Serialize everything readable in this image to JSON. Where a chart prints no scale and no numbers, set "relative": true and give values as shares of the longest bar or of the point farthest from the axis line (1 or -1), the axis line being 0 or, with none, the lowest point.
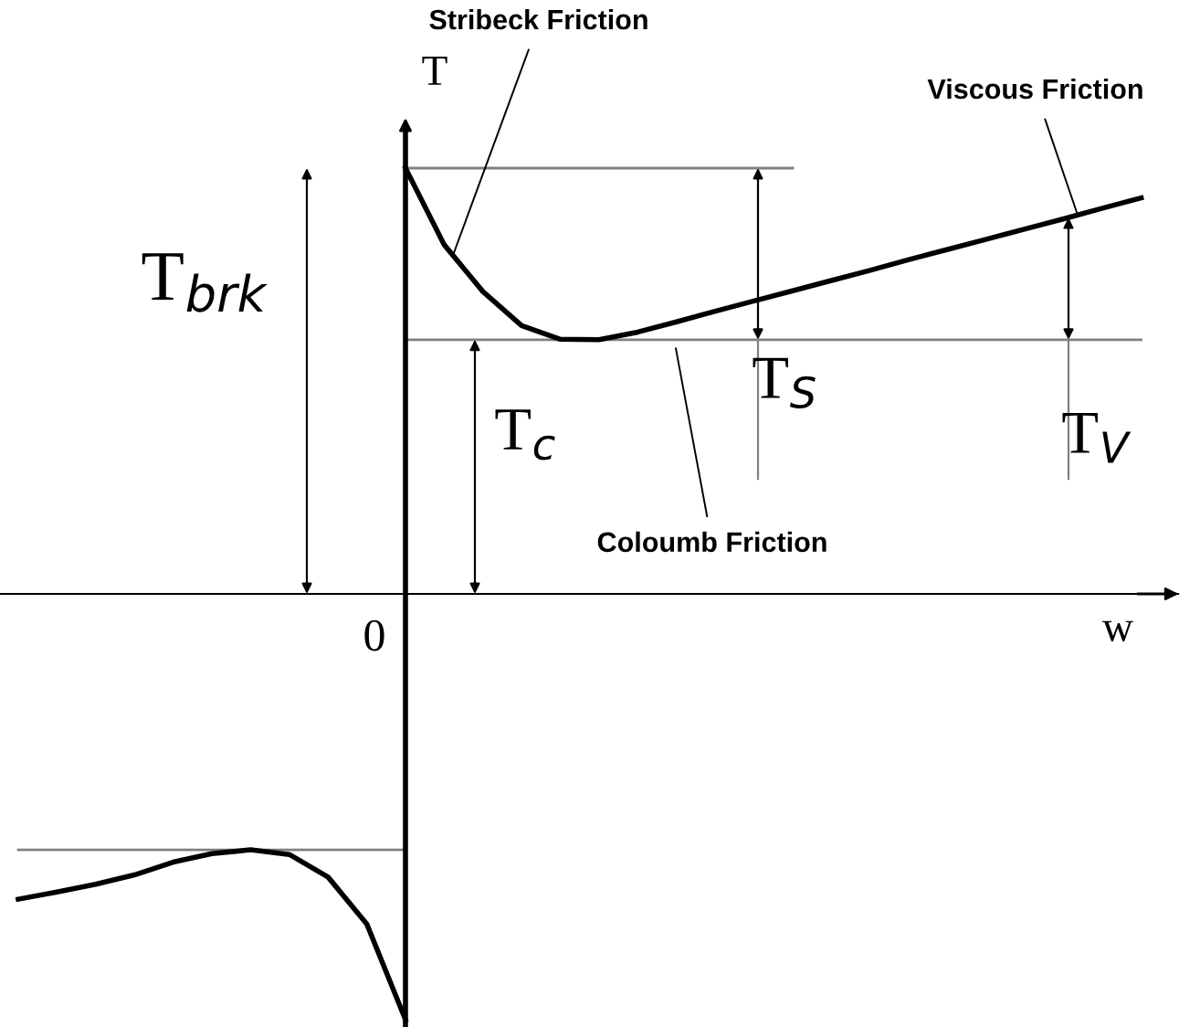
{
  "chart_data": {
    "type": "line",
    "relative": true,
    "xlabel": "w",
    "ylabel": "T",
    "marker": "none",
    "line_style": "solid",
    "categories": [
      null,
      null,
      null,
      null,
      null,
      null,
      null,
      null,
      null,
      null,
      null,
      null,
      null,
      null,
      null,
      null,
      null,
      null,
      null,
      null,
      null,
      null,
      null,
      null,
      null,
      null,
      null,
      null,
      null,
      null
    ],
    "series": [
      {
        "color": "#000000",
        "values": [
          null,
          null,
          null,
          null,
          null,
          null,
          null,
          null,
          null,
          null,
          1.0,
          0.82,
          0.71,
          0.63,
          0.598,
          0.597,
          0.615,
          0.639,
          0.664,
          0.688,
          0.712,
          0.736,
          0.76,
          0.785,
          0.809,
          0.833,
          0.857,
          0.881,
          0.906,
          0.93
        ]
      },
      {
        "color": "#000000",
        "values": [
          -0.717,
          -0.7,
          -0.682,
          -0.66,
          -0.63,
          -0.61,
          -0.601,
          -0.612,
          -0.665,
          -0.775,
          -1.0,
          null,
          null,
          null,
          null,
          null,
          null,
          null,
          null,
          null,
          null,
          null,
          null,
          null,
          null,
          null,
          null,
          null,
          null,
          null
        ]
      },
      {
        "color": "#808080",
        "values": [
          null,
          null,
          null,
          null,
          null,
          null,
          null,
          null,
          null,
          null,
          1.0,
          1.0,
          1.0,
          1.0,
          1.0,
          1.0,
          1.0,
          1.0,
          1.0,
          1.0,
          1.0,
          null,
          null,
          null,
          null,
          null,
          null,
          null,
          null,
          null
        ]
      },
      {
        "color": "#808080",
        "values": [
          null,
          null,
          null,
          null,
          null,
          null,
          null,
          null,
          null,
          null,
          0.597,
          0.597,
          0.597,
          0.597,
          0.597,
          0.597,
          0.597,
          0.597,
          0.597,
          0.597,
          0.597,
          0.597,
          0.597,
          0.597,
          0.597,
          0.597,
          0.597,
          0.597,
          0.597,
          0.597
        ]
      },
      {
        "color": "#808080",
        "values": [
          -0.601,
          -0.601,
          -0.601,
          -0.601,
          -0.601,
          -0.601,
          -0.601,
          -0.601,
          -0.601,
          -0.601,
          -0.601,
          null,
          null,
          null,
          null,
          null,
          null,
          null,
          null,
          null,
          null,
          null,
          null,
          null,
          null,
          null,
          null,
          null,
          null,
          null
        ]
      }
    ],
    "annotations": [
      "Stribeck Friction",
      "Viscous Friction",
      "Coloumb Friction",
      "T$_{brk}$",
      "T$_{c}$",
      "T$_{S}$",
      "T$_{V}$",
      "0"
    ]
  }
}
